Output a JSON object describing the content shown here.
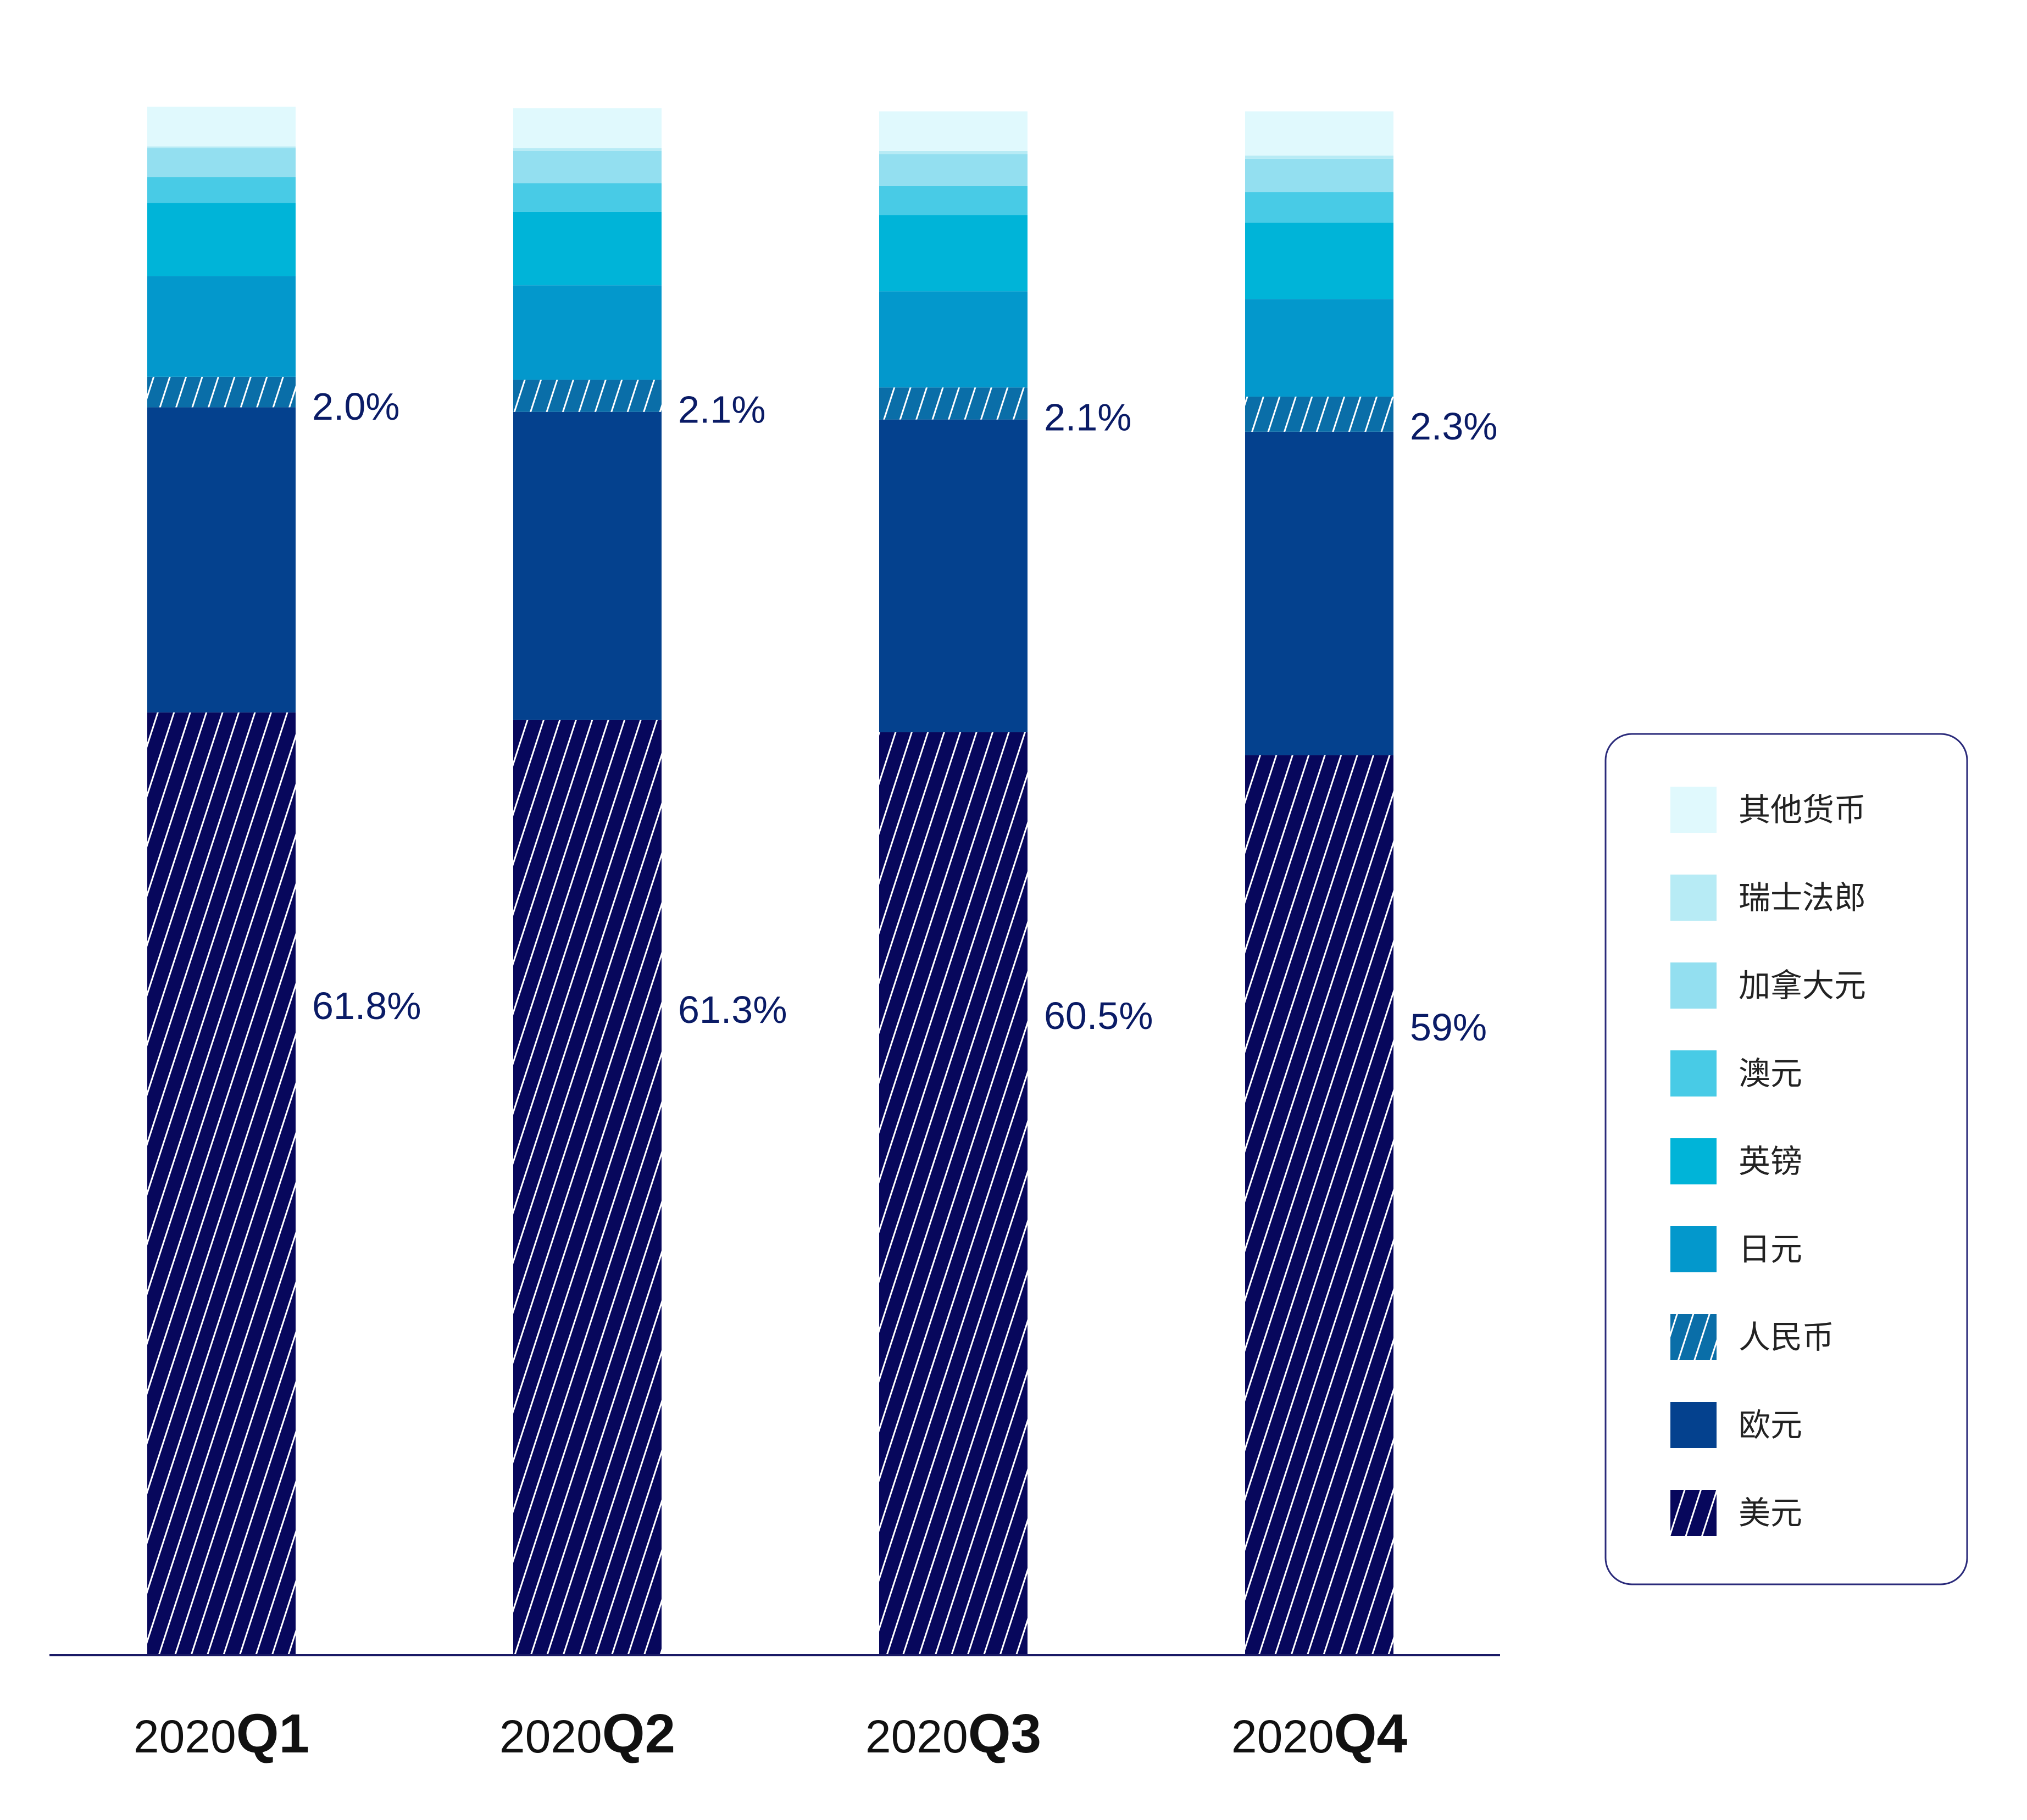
{
  "colors": {
    "usd": "#07075c",
    "eur": "#04418e",
    "cny": "#0a6ea8",
    "jpy": "#0398cc",
    "gbp": "#00b4d8",
    "aud": "#48cbe6",
    "cad": "#93dff0",
    "chf": "#b7ebf5",
    "other": "#e0f9fd",
    "axis": "#1a1a66",
    "legend_border": "#2a2a7a"
  },
  "chart_data": {
    "type": "bar",
    "stacked": true,
    "categories": [
      {
        "year": "2020",
        "quarter": "Q1"
      },
      {
        "year": "2020",
        "quarter": "Q2"
      },
      {
        "year": "2020",
        "quarter": "Q3"
      },
      {
        "year": "2020",
        "quarter": "Q4"
      }
    ],
    "ylim": [
      0,
      100
    ],
    "grid": false,
    "legend_position": "right",
    "series": [
      {
        "name": "美元",
        "key": "usd",
        "pattern": "hatch",
        "values": [
          61.8,
          61.3,
          60.5,
          59.0
        ],
        "labels": [
          "61.8%",
          "61.3%",
          "60.5%",
          "59%"
        ]
      },
      {
        "name": "欧元",
        "key": "eur",
        "values": [
          20.0,
          20.2,
          20.5,
          21.2
        ]
      },
      {
        "name": "人民币",
        "key": "cny",
        "pattern": "hatch",
        "values": [
          2.0,
          2.1,
          2.1,
          2.3
        ],
        "labels": [
          "2.0%",
          "2.1%",
          "2.1%",
          "2.3%"
        ]
      },
      {
        "name": "日元",
        "key": "jpy",
        "values": [
          6.6,
          6.2,
          6.3,
          6.4
        ]
      },
      {
        "name": "英镑",
        "key": "gbp",
        "values": [
          4.8,
          4.8,
          5.0,
          5.0
        ]
      },
      {
        "name": "澳元",
        "key": "aud",
        "values": [
          1.7,
          1.9,
          1.9,
          2.0
        ]
      },
      {
        "name": "加拿大元",
        "key": "cad",
        "values": [
          1.9,
          2.1,
          2.1,
          2.2
        ]
      },
      {
        "name": "瑞士法郎",
        "key": "chf",
        "values": [
          0.1,
          0.2,
          0.2,
          0.2
        ]
      },
      {
        "name": "其他货币",
        "key": "other",
        "values": [
          2.6,
          2.6,
          2.6,
          2.9
        ]
      }
    ]
  }
}
